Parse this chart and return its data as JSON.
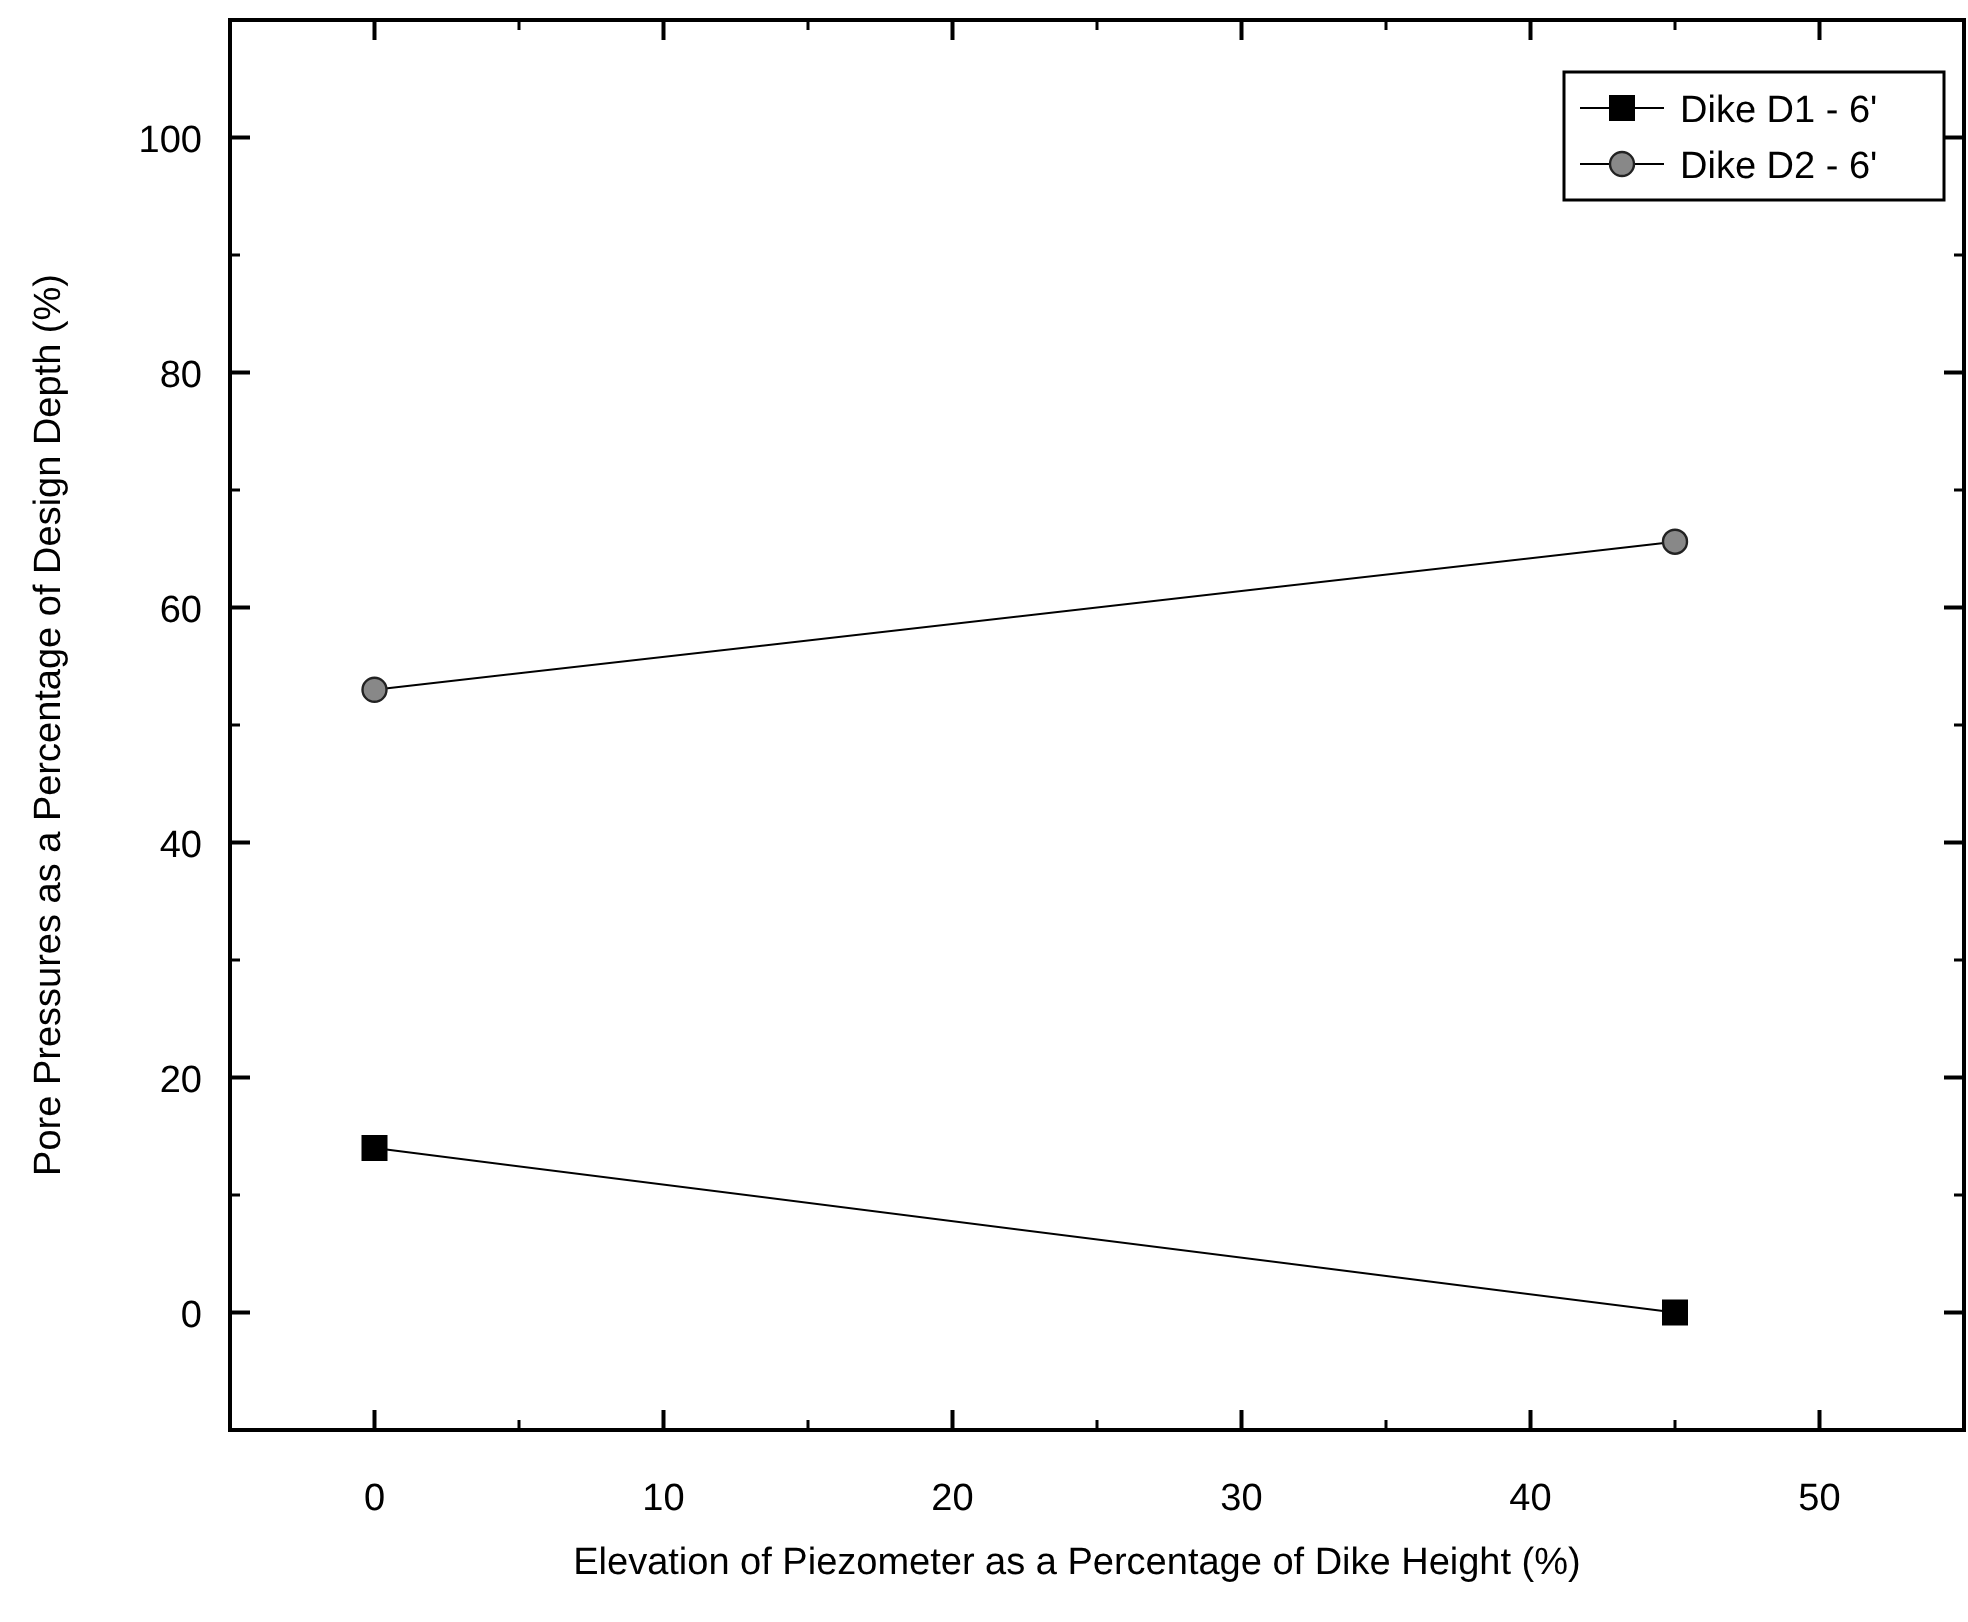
{
  "chart_data": {
    "type": "line",
    "xlabel": "Elevation of Piezometer as a Percentage of Dike Height (%)",
    "ylabel": "Pore Pressures as a Percentage of Design Depth (%)",
    "x": [
      0,
      45
    ],
    "xlim": [
      -5,
      55
    ],
    "xticks": [
      0,
      10,
      20,
      30,
      40,
      50
    ],
    "ylim": [
      -10,
      110
    ],
    "yticks": [
      0,
      20,
      40,
      60,
      80,
      100
    ],
    "legend": "top right",
    "series": [
      {
        "name": "Dike D1 - 6'",
        "color": "#000000",
        "marker": "square",
        "values": [
          14,
          0
        ]
      },
      {
        "name": "Dike D2 - 6'",
        "color": "#888888",
        "marker": "circle",
        "values": [
          53,
          65.6
        ]
      }
    ]
  }
}
